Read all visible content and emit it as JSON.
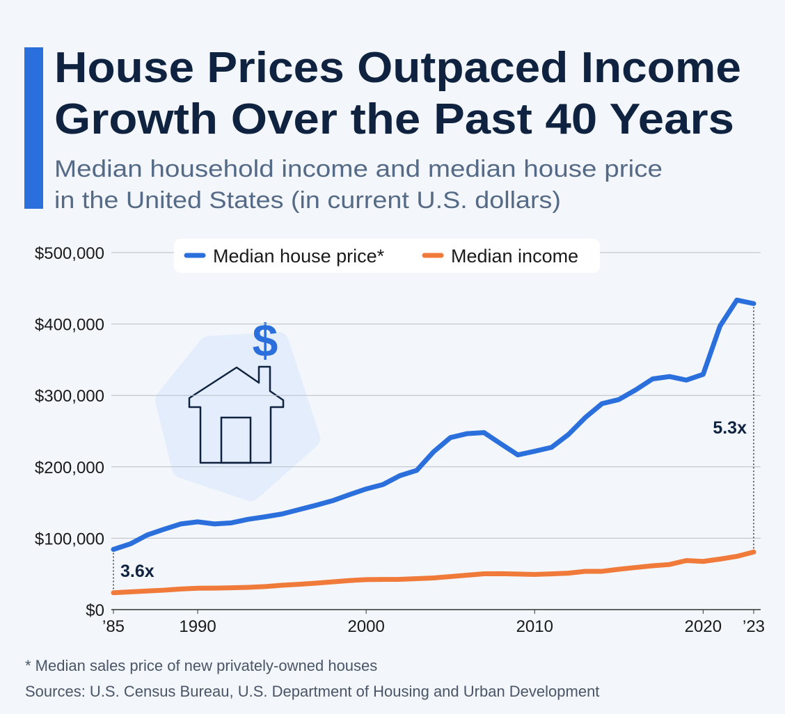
{
  "chart_data": {
    "type": "line",
    "title_lines": [
      "House Prices Outpaced Income",
      "Growth Over the Past 40 Years"
    ],
    "subtitle_lines": [
      "Median household income and median house price",
      "in the United States (in current U.S. dollars)"
    ],
    "x": [
      1985,
      1986,
      1987,
      1988,
      1989,
      1990,
      1991,
      1992,
      1993,
      1994,
      1995,
      1996,
      1997,
      1998,
      1999,
      2000,
      2001,
      2002,
      2003,
      2004,
      2005,
      2006,
      2007,
      2008,
      2009,
      2010,
      2011,
      2012,
      2013,
      2014,
      2015,
      2016,
      2017,
      2018,
      2019,
      2020,
      2021,
      2022,
      2023
    ],
    "series": [
      {
        "name": "Median house price*",
        "color": "#2a6fdb",
        "values": [
          84300,
          92000,
          104500,
          112500,
          120000,
          122900,
          120000,
          121500,
          126500,
          130000,
          133900,
          140000,
          146000,
          152500,
          161000,
          169000,
          175200,
          187600,
          195000,
          221000,
          240900,
          246500,
          247900,
          232100,
          216700,
          221800,
          227200,
          245200,
          268900,
          288500,
          294200,
          307800,
          323100,
          326400,
          321500,
          329500,
          397100,
          433500,
          428600
        ]
      },
      {
        "name": "Median income",
        "color": "#f07a3a",
        "values": [
          23620,
          24900,
          26060,
          27230,
          28910,
          29940,
          30130,
          30640,
          31240,
          32260,
          34080,
          35490,
          37010,
          38890,
          40700,
          41990,
          42230,
          42410,
          43320,
          44330,
          46330,
          48200,
          50230,
          50300,
          49780,
          49280,
          50050,
          51020,
          53590,
          53660,
          56520,
          59040,
          61370,
          63180,
          68700,
          67520,
          70780,
          74580,
          80610
        ]
      }
    ],
    "xlim": [
      1985,
      2023
    ],
    "xticks": [
      {
        "value": 1985,
        "label": "’85"
      },
      1990,
      2000,
      2010,
      2020,
      {
        "value": 2023,
        "label": "’23"
      }
    ],
    "ylim": [
      0,
      500000
    ],
    "yticks": [
      {
        "value": 0,
        "label": "$0"
      },
      {
        "value": 100000,
        "label": "$100,000"
      },
      {
        "value": 200000,
        "label": "$200,000"
      },
      {
        "value": 300000,
        "label": "$300,000"
      },
      {
        "value": 400000,
        "label": "$400,000"
      },
      {
        "value": 500000,
        "label": "$500,000"
      }
    ],
    "grid": true,
    "annotations": [
      "3.6x",
      "5.3x"
    ],
    "footnote": "* Median sales price of new privately-owned houses",
    "source": "Sources: U.S. Census Bureau, U.S. Department of Housing and Urban Development"
  }
}
